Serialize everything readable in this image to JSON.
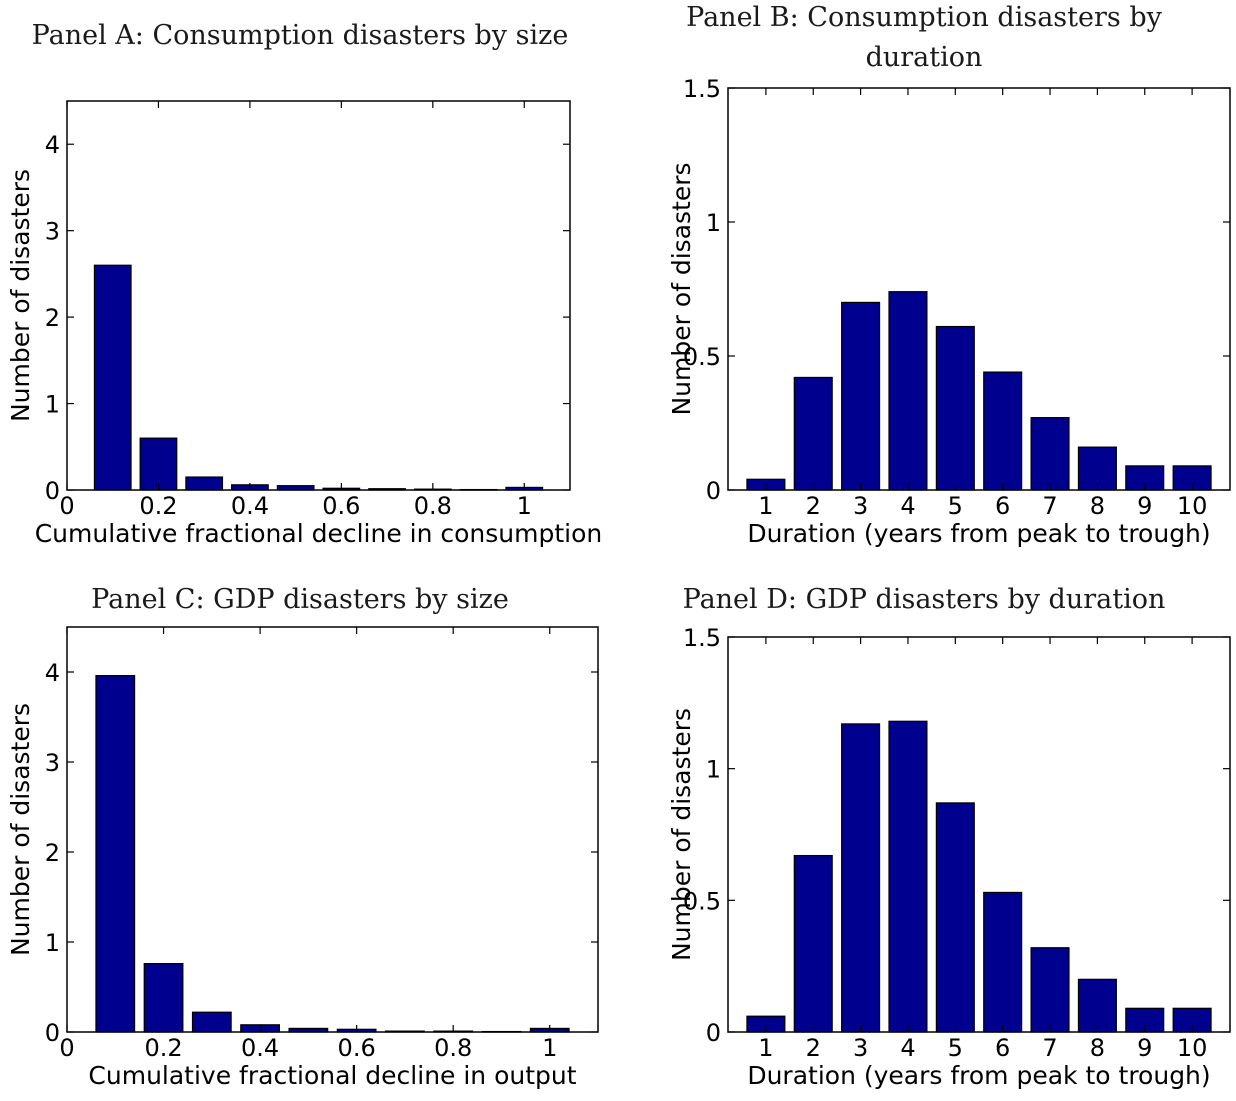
{
  "chart_data": [
    {
      "id": "A",
      "type": "bar",
      "title_lines": [
        "Panel A: Consumption disasters by size"
      ],
      "xlabel": "Cumulative fractional decline in consumption",
      "ylabel": "Number of disasters",
      "xlim": [
        0,
        1.1
      ],
      "ylim": [
        0,
        4.5
      ],
      "xticks": [
        0,
        0.2,
        0.4,
        0.6,
        0.8,
        1
      ],
      "xtick_labels": [
        "0",
        "0.2",
        "0.4",
        "0.6",
        "0.8",
        "1"
      ],
      "yticks": [
        0,
        1,
        2,
        3,
        4
      ],
      "ytick_labels": [
        "0",
        "1",
        "2",
        "3",
        "4"
      ],
      "bar_width": 0.08,
      "x": [
        0.1,
        0.2,
        0.3,
        0.4,
        0.5,
        0.6,
        0.7,
        0.8,
        0.9,
        1.0
      ],
      "values": [
        2.6,
        0.6,
        0.15,
        0.06,
        0.05,
        0.02,
        0.015,
        0.01,
        0.005,
        0.03
      ]
    },
    {
      "id": "B",
      "type": "bar",
      "title_lines": [
        "Panel B: Consumption disasters by",
        "duration"
      ],
      "xlabel": "Duration (years from peak to trough)",
      "ylabel": "Number of disasters",
      "xlim": [
        0.2,
        10.8
      ],
      "ylim": [
        0,
        1.5
      ],
      "xticks": [
        1,
        2,
        3,
        4,
        5,
        6,
        7,
        8,
        9,
        10
      ],
      "xtick_labels": [
        "1",
        "2",
        "3",
        "4",
        "5",
        "6",
        "7",
        "8",
        "9",
        "10"
      ],
      "yticks": [
        0,
        0.5,
        1,
        1.5
      ],
      "ytick_labels": [
        "0",
        "0.5",
        "1",
        "1.5"
      ],
      "bar_width": 0.8,
      "x": [
        1,
        2,
        3,
        4,
        5,
        6,
        7,
        8,
        9,
        10
      ],
      "values": [
        0.04,
        0.42,
        0.7,
        0.74,
        0.61,
        0.44,
        0.27,
        0.16,
        0.09,
        0.09
      ]
    },
    {
      "id": "C",
      "type": "bar",
      "title_lines": [
        "Panel C: GDP disasters by size"
      ],
      "xlabel": "Cumulative fractional decline in output",
      "ylabel": "Number of disasters",
      "xlim": [
        0,
        1.1
      ],
      "ylim": [
        0,
        4.5
      ],
      "xticks": [
        0,
        0.2,
        0.4,
        0.6,
        0.8,
        1
      ],
      "xtick_labels": [
        "0",
        "0.2",
        "0.4",
        "0.6",
        "0.8",
        "1"
      ],
      "yticks": [
        0,
        1,
        2,
        3,
        4
      ],
      "ytick_labels": [
        "0",
        "1",
        "2",
        "3",
        "4"
      ],
      "bar_width": 0.08,
      "x": [
        0.1,
        0.2,
        0.3,
        0.4,
        0.5,
        0.6,
        0.7,
        0.8,
        0.9,
        1.0
      ],
      "values": [
        3.96,
        0.76,
        0.22,
        0.08,
        0.04,
        0.03,
        0.01,
        0.01,
        0.005,
        0.04
      ]
    },
    {
      "id": "D",
      "type": "bar",
      "title_lines": [
        "Panel D: GDP disasters by duration"
      ],
      "xlabel": "Duration (years from peak to trough)",
      "ylabel": "Number of disasters",
      "xlim": [
        0.2,
        10.8
      ],
      "ylim": [
        0,
        1.5
      ],
      "xticks": [
        1,
        2,
        3,
        4,
        5,
        6,
        7,
        8,
        9,
        10
      ],
      "xtick_labels": [
        "1",
        "2",
        "3",
        "4",
        "5",
        "6",
        "7",
        "8",
        "9",
        "10"
      ],
      "yticks": [
        0,
        0.5,
        1,
        1.5
      ],
      "ytick_labels": [
        "0",
        "0.5",
        "1",
        "1.5"
      ],
      "bar_width": 0.8,
      "x": [
        1,
        2,
        3,
        4,
        5,
        6,
        7,
        8,
        9,
        10
      ],
      "values": [
        0.06,
        0.67,
        1.17,
        1.18,
        0.87,
        0.53,
        0.32,
        0.2,
        0.09,
        0.09
      ]
    }
  ],
  "colors": {
    "bar_fill": "#00008f",
    "bar_edge": "#000000",
    "axes": "#000000"
  }
}
